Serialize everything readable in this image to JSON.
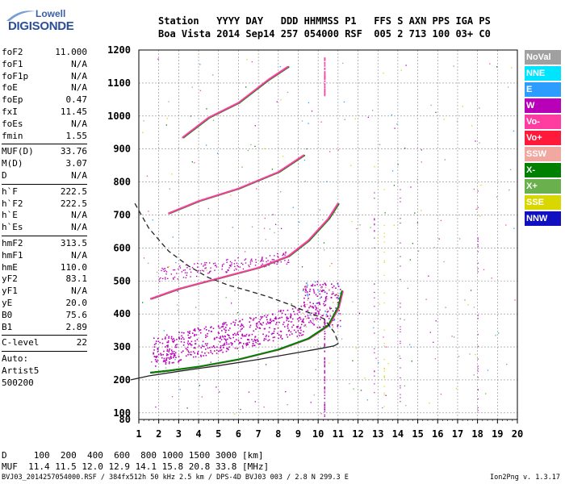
{
  "logo": {
    "brand": "Lowell",
    "name": "DIGISONDE"
  },
  "header": {
    "line1": "Station   YYYY DAY   DDD HHMMSS P1   FFS S AXN PPS IGA PS",
    "line2": "Boa Vista 2014 Sep14 257 054000 RSF  005 2 713 100 03+ C0"
  },
  "params": [
    {
      "k": "foF2",
      "v": "11.000"
    },
    {
      "k": "foF1",
      "v": "N/A"
    },
    {
      "k": "foF1p",
      "v": "N/A"
    },
    {
      "k": "foE",
      "v": "N/A"
    },
    {
      "k": "foEp",
      "v": "0.47"
    },
    {
      "k": "fxI",
      "v": "11.45"
    },
    {
      "k": "foEs",
      "v": "N/A"
    },
    {
      "k": "fmin",
      "v": "1.55"
    },
    {
      "sep": true
    },
    {
      "k": "MUF(D)",
      "v": "33.76"
    },
    {
      "k": "M(D)",
      "v": "3.07"
    },
    {
      "k": "D",
      "v": "N/A"
    },
    {
      "sep": true
    },
    {
      "k": "h`F",
      "v": "222.5"
    },
    {
      "k": "h`F2",
      "v": "222.5"
    },
    {
      "k": "h`E",
      "v": "N/A"
    },
    {
      "k": "h`Es",
      "v": "N/A"
    },
    {
      "sep": true
    },
    {
      "k": "hmF2",
      "v": "313.5"
    },
    {
      "k": "hmF1",
      "v": "N/A"
    },
    {
      "k": "hmE",
      "v": "110.0"
    },
    {
      "k": "yF2",
      "v": "83.1"
    },
    {
      "k": "yF1",
      "v": "N/A"
    },
    {
      "k": "yE",
      "v": "20.0"
    },
    {
      "k": "B0",
      "v": "75.6"
    },
    {
      "k": "B1",
      "v": "2.89"
    },
    {
      "sep": true
    },
    {
      "k": "C-level",
      "v": "22"
    },
    {
      "sep": true
    },
    {
      "plain": "Auto:"
    },
    {
      "plain": "Artist5"
    },
    {
      "plain": "500200"
    }
  ],
  "bottom": {
    "line1": "D     100  200  400  600  800 1000 1500 3000 [km]",
    "line2": "MUF  11.4 11.5 12.0 12.9 14.1 15.8 20.8 33.8 [MHz]"
  },
  "footer": "BVJ03_2014257054000.RSF / 384fx512h 50 kHz 2.5 km / DPS-4D BVJ03 003 / 2.8 N 299.3 E",
  "footer_right": "Ion2Png v. 1.3.17",
  "legend": [
    {
      "label": "NoVal",
      "color": "#a0a0a0"
    },
    {
      "label": "NNE",
      "color": "#00e5ff"
    },
    {
      "label": "E",
      "color": "#2c9cff"
    },
    {
      "label": "W",
      "color": "#b800b8"
    },
    {
      "label": "Vo-",
      "color": "#ff3ca0"
    },
    {
      "label": "Vo+",
      "color": "#ff1a3c"
    },
    {
      "label": "SSW",
      "color": "#f0a8a0"
    },
    {
      "label": "X-",
      "color": "#008000"
    },
    {
      "label": "X+",
      "color": "#6ab04c"
    },
    {
      "label": "SSE",
      "color": "#d8d800"
    },
    {
      "label": "NNW",
      "color": "#1010c0"
    }
  ],
  "chart_data": {
    "type": "scatter",
    "xlim": [
      1,
      20
    ],
    "ylim": [
      80,
      1200
    ],
    "x_ticks": [
      1,
      2,
      3,
      4,
      5,
      6,
      7,
      8,
      9,
      10,
      11,
      12,
      13,
      14,
      15,
      16,
      17,
      18,
      19,
      20
    ],
    "y_ticks": [
      80,
      100,
      200,
      300,
      400,
      500,
      600,
      700,
      800,
      900,
      1000,
      1100,
      1200
    ],
    "grid": "dashed",
    "traces": [
      {
        "name": "X-",
        "color": "#008000",
        "x": [
          1.6,
          2.5,
          4,
          6,
          8,
          9.5,
          10.5,
          11,
          11.2
        ],
        "y": [
          222,
          228,
          240,
          262,
          292,
          325,
          365,
          420,
          470
        ]
      },
      {
        "name": "Vo-",
        "color": "#ff3ca0",
        "x": [
          1.6,
          3,
          5,
          7,
          8.5,
          9.5,
          10.5,
          11
        ],
        "y": [
          446,
          476,
          508,
          540,
          575,
          622,
          688,
          735
        ]
      },
      {
        "name": "Vo-",
        "color": "#ff3ca0",
        "x": [
          2.5,
          4,
          6,
          8,
          9.3
        ],
        "y": [
          705,
          742,
          780,
          830,
          882
        ]
      },
      {
        "name": "Vo-",
        "color": "#ff3ca0",
        "x": [
          3.2,
          4.5,
          6,
          7.5,
          8.5
        ],
        "y": [
          935,
          995,
          1040,
          1110,
          1150
        ]
      }
    ],
    "profile": {
      "x": [
        0.6,
        1.5,
        3,
        5,
        7,
        9,
        10.2,
        10.8,
        11.0,
        11.0
      ],
      "y": [
        200,
        212,
        226,
        243,
        262,
        283,
        296,
        303,
        310,
        313
      ]
    },
    "muf_curve": {
      "x": [
        0.8,
        1.5,
        2.5,
        3.5,
        4.5,
        5.5,
        6.5,
        7.5,
        8.5,
        9.5,
        10.3,
        10.8,
        11.0
      ],
      "y": [
        735,
        660,
        590,
        545,
        510,
        487,
        470,
        452,
        430,
        405,
        385,
        345,
        315
      ]
    }
  }
}
